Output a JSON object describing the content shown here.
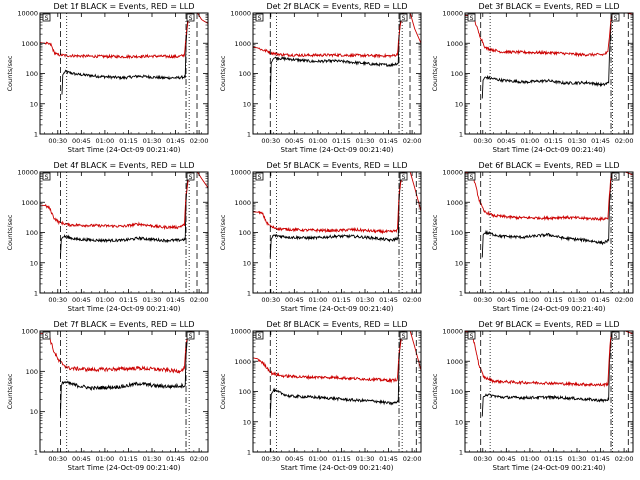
{
  "figure": {
    "xlabel": "Start Time (24-Oct-09 00:21:40)",
    "ylabel": "Counts/sec",
    "x_tick_labels": [
      "00:30",
      "00:45",
      "01:00",
      "01:15",
      "01:30",
      "01:45",
      "02:00"
    ],
    "y_tick_labels": [
      "1",
      "10",
      "100",
      "1000",
      "10000"
    ],
    "series_colors": {
      "events": "#000000",
      "lld": "#cc0000"
    },
    "legend": {
      "events_color_word": "BLACK",
      "events_label": "Events",
      "lld_color_word": "RED",
      "lld_label": "LLD"
    },
    "marker_label": "S"
  },
  "chart_data": [
    {
      "type": "line",
      "title": "Det 1f BLACK = Events, RED = LLD",
      "xlim_minutes": [
        -3,
        104
      ],
      "ylim": [
        1,
        10000
      ],
      "log_y": true,
      "dashed_lines_min": [
        10,
        97
      ],
      "dotted_lines_min": [
        14,
        92
      ],
      "dashdot_lines_min": [
        90
      ],
      "series": [
        {
          "name": "Events",
          "x": [
            11,
            11.5,
            13,
            20,
            35,
            50,
            60,
            75,
            85,
            89.5,
            90,
            91,
            93
          ],
          "y": [
            20,
            90,
            115,
            95,
            80,
            72,
            82,
            72,
            72,
            78,
            900,
            6000,
            10000
          ]
        },
        {
          "name": "LLD",
          "x": [
            -3,
            0,
            4,
            6,
            8,
            14,
            30,
            50,
            70,
            85,
            89,
            90,
            92,
            94,
            97,
            100,
            104
          ],
          "y": [
            1050,
            1000,
            900,
            500,
            420,
            390,
            370,
            360,
            375,
            360,
            400,
            1800,
            8500,
            11000,
            10500,
            6000,
            4500
          ]
        }
      ]
    },
    {
      "type": "line",
      "title": "Det 2f BLACK = Events, RED = LLD",
      "xlim_minutes": [
        -3,
        104
      ],
      "ylim": [
        1,
        10000
      ],
      "log_y": true,
      "dashed_lines_min": [
        8,
        97
      ],
      "dotted_lines_min": [
        12,
        92
      ],
      "dashdot_lines_min": [
        90
      ],
      "series": [
        {
          "name": "Events",
          "x": [
            8,
            8.6,
            10,
            20,
            35,
            50,
            60,
            75,
            85,
            89.5,
            90,
            91,
            93
          ],
          "y": [
            15,
            220,
            330,
            300,
            250,
            260,
            235,
            200,
            190,
            220,
            1500,
            7000,
            10000
          ]
        },
        {
          "name": "LLD",
          "x": [
            -3,
            0,
            3,
            6,
            9,
            15,
            30,
            50,
            70,
            85,
            89,
            90,
            92,
            94,
            97,
            100,
            104
          ],
          "y": [
            750,
            700,
            600,
            550,
            480,
            420,
            400,
            410,
            390,
            380,
            420,
            2000,
            8500,
            11000,
            10500,
            3000,
            1000
          ]
        }
      ]
    },
    {
      "type": "line",
      "title": "Det 3f BLACK = Events, RED = LLD",
      "xlim_minutes": [
        -3,
        104
      ],
      "ylim": [
        1,
        10000
      ],
      "log_y": true,
      "dashed_lines_min": [
        7,
        101
      ],
      "dotted_lines_min": [
        13,
        91
      ],
      "dashdot_lines_min": [
        90
      ],
      "series": [
        {
          "name": "Events",
          "x": [
            8,
            8.5,
            10,
            20,
            35,
            50,
            60,
            75,
            85,
            88.5,
            89,
            90,
            92
          ],
          "y": [
            15,
            60,
            75,
            60,
            52,
            58,
            48,
            50,
            42,
            50,
            400,
            5000,
            10000
          ]
        },
        {
          "name": "LLD",
          "x": [
            -3,
            0,
            3,
            6,
            10,
            20,
            35,
            55,
            70,
            85,
            88,
            89,
            90,
            92,
            94,
            98,
            104
          ],
          "y": [
            8500,
            8000,
            6000,
            2000,
            700,
            520,
            500,
            480,
            420,
            420,
            500,
            1800,
            7000,
            10000,
            11000,
            10500,
            9000
          ]
        }
      ]
    },
    {
      "type": "line",
      "title": "Det 4f BLACK = Events, RED = LLD",
      "xlim_minutes": [
        -3,
        104
      ],
      "ylim": [
        1,
        10000
      ],
      "log_y": true,
      "dashed_lines_min": [
        10,
        97
      ],
      "dotted_lines_min": [
        14,
        92
      ],
      "dashdot_lines_min": [
        90
      ],
      "series": [
        {
          "name": "Events",
          "x": [
            10,
            10.6,
            12,
            20,
            35,
            50,
            60,
            75,
            85,
            89.5,
            90,
            91,
            93
          ],
          "y": [
            15,
            60,
            75,
            60,
            55,
            55,
            65,
            55,
            55,
            60,
            1000,
            7000,
            10000
          ]
        },
        {
          "name": "LLD",
          "x": [
            -3,
            0,
            3,
            6,
            9,
            15,
            30,
            50,
            60,
            75,
            85,
            89,
            90,
            92,
            94,
            97,
            100,
            104
          ],
          "y": [
            800,
            780,
            650,
            300,
            220,
            180,
            170,
            160,
            190,
            150,
            150,
            180,
            1800,
            8500,
            11000,
            10500,
            6000,
            3000
          ]
        }
      ]
    },
    {
      "type": "line",
      "title": "Det 5f BLACK = Events, RED = LLD",
      "xlim_minutes": [
        -3,
        104
      ],
      "ylim": [
        1,
        10000
      ],
      "log_y": true,
      "dashed_lines_min": [
        8,
        101
      ],
      "dotted_lines_min": [
        12,
        92
      ],
      "dashdot_lines_min": [
        90
      ],
      "series": [
        {
          "name": "Events",
          "x": [
            8,
            8.6,
            10,
            20,
            35,
            50,
            60,
            75,
            85,
            89.5,
            90,
            91,
            93
          ],
          "y": [
            15,
            60,
            80,
            70,
            65,
            75,
            75,
            65,
            55,
            65,
            1000,
            7000,
            10000
          ]
        },
        {
          "name": "LLD",
          "x": [
            -3,
            0,
            3,
            6,
            9,
            15,
            30,
            50,
            60,
            75,
            85,
            89,
            90,
            92,
            94,
            97,
            100,
            104
          ],
          "y": [
            480,
            470,
            420,
            200,
            150,
            130,
            120,
            115,
            125,
            110,
            105,
            120,
            1800,
            8500,
            11000,
            10500,
            3000,
            500
          ]
        }
      ]
    },
    {
      "type": "line",
      "title": "Det 6f BLACK = Events, RED = LLD",
      "xlim_minutes": [
        -3,
        104
      ],
      "ylim": [
        1,
        10000
      ],
      "log_y": true,
      "dashed_lines_min": [
        7,
        101
      ],
      "dotted_lines_min": [
        13,
        91
      ],
      "dashdot_lines_min": [
        90
      ],
      "series": [
        {
          "name": "Events",
          "x": [
            8,
            8.6,
            10,
            20,
            35,
            50,
            60,
            75,
            85,
            88.5,
            89,
            90,
            92
          ],
          "y": [
            15,
            85,
            100,
            75,
            70,
            85,
            65,
            55,
            45,
            55,
            900,
            6000,
            10000
          ]
        },
        {
          "name": "LLD",
          "x": [
            -3,
            0,
            3,
            6,
            9,
            15,
            30,
            50,
            60,
            75,
            85,
            88,
            89,
            90,
            92,
            94,
            98,
            104
          ],
          "y": [
            9500,
            9000,
            5000,
            1200,
            500,
            360,
            310,
            300,
            320,
            290,
            280,
            300,
            1800,
            7500,
            10000,
            11000,
            10500,
            8000
          ]
        }
      ]
    },
    {
      "type": "line",
      "title": "Det 7f BLACK = Events, RED = LLD",
      "xlim_minutes": [
        -3,
        104
      ],
      "ylim": [
        1,
        1000
      ],
      "log_y": true,
      "dashed_lines_min": [
        10
      ],
      "dotted_lines_min": [
        14,
        92
      ],
      "dashdot_lines_min": [
        90
      ],
      "series": [
        {
          "name": "Events",
          "x": [
            10,
            10.6,
            12,
            20,
            30,
            40,
            50,
            60,
            70,
            80,
            89.5,
            90,
            91,
            93
          ],
          "y": [
            8,
            45,
            55,
            45,
            38,
            40,
            42,
            50,
            44,
            42,
            45,
            250,
            800,
            1000
          ]
        },
        {
          "name": "LLD",
          "x": [
            -3,
            0,
            3,
            6,
            9,
            15,
            30,
            50,
            60,
            75,
            85,
            89,
            90,
            92,
            94
          ],
          "y": [
            880,
            860,
            700,
            300,
            180,
            120,
            110,
            115,
            120,
            110,
            100,
            120,
            500,
            900,
            1000
          ]
        }
      ]
    },
    {
      "type": "line",
      "title": "Det 8f BLACK = Events, RED = LLD",
      "xlim_minutes": [
        -3,
        104
      ],
      "ylim": [
        1,
        10000
      ],
      "log_y": true,
      "dashed_lines_min": [
        8,
        101
      ],
      "dotted_lines_min": [
        12,
        92
      ],
      "dashdot_lines_min": [
        90
      ],
      "series": [
        {
          "name": "Events",
          "x": [
            8,
            8.6,
            10,
            20,
            35,
            50,
            60,
            75,
            85,
            89.5,
            90,
            91,
            93
          ],
          "y": [
            15,
            80,
            110,
            70,
            65,
            58,
            52,
            48,
            40,
            45,
            1000,
            7000,
            10000
          ]
        },
        {
          "name": "LLD",
          "x": [
            -3,
            0,
            3,
            6,
            9,
            15,
            30,
            50,
            60,
            75,
            85,
            89,
            90,
            92,
            94,
            97,
            100,
            104
          ],
          "y": [
            1300,
            1200,
            900,
            600,
            400,
            330,
            300,
            290,
            270,
            250,
            230,
            250,
            1800,
            8500,
            11000,
            10500,
            3000,
            500
          ]
        }
      ]
    },
    {
      "type": "line",
      "title": "Det 9f BLACK = Events, RED = LLD",
      "xlim_minutes": [
        -3,
        104
      ],
      "ylim": [
        1,
        10000
      ],
      "log_y": true,
      "dashed_lines_min": [
        7,
        101
      ],
      "dotted_lines_min": [
        13,
        91
      ],
      "dashdot_lines_min": [
        90
      ],
      "series": [
        {
          "name": "Events",
          "x": [
            8,
            8.6,
            10,
            20,
            35,
            50,
            60,
            75,
            85,
            88.5,
            89,
            90,
            92
          ],
          "y": [
            15,
            65,
            80,
            65,
            62,
            65,
            62,
            55,
            50,
            55,
            900,
            6000,
            10000
          ]
        },
        {
          "name": "LLD",
          "x": [
            -3,
            0,
            3,
            6,
            9,
            15,
            30,
            50,
            60,
            75,
            85,
            88,
            89,
            90,
            92,
            94,
            98,
            104
          ],
          "y": [
            9500,
            9000,
            4000,
            700,
            300,
            220,
            200,
            190,
            180,
            170,
            165,
            180,
            1800,
            7500,
            10000,
            11000,
            10500,
            8000
          ]
        }
      ]
    }
  ]
}
